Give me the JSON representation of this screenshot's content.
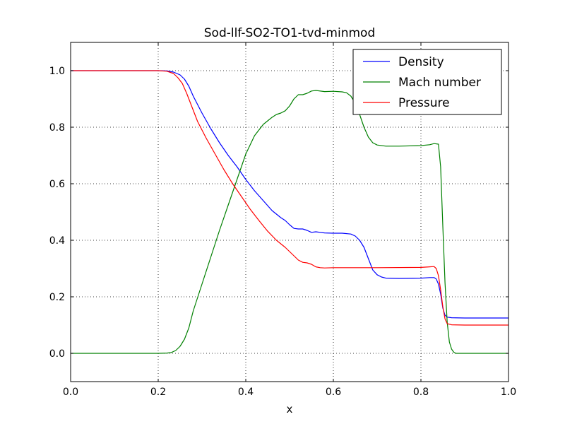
{
  "chart_data": {
    "type": "line",
    "title": "Sod-llf-SO2-TO1-tvd-minmod",
    "xlabel": "x",
    "ylabel": "",
    "xlim": [
      0.0,
      1.0
    ],
    "ylim": [
      -0.1,
      1.1
    ],
    "xticks": [
      0.0,
      0.2,
      0.4,
      0.6,
      0.8,
      1.0
    ],
    "yticks": [
      0.0,
      0.2,
      0.4,
      0.6,
      0.8,
      1.0
    ],
    "xtick_labels": [
      "0.0",
      "0.2",
      "0.4",
      "0.6",
      "0.8",
      "1.0"
    ],
    "ytick_labels": [
      "0.0",
      "0.2",
      "0.4",
      "0.6",
      "0.8",
      "1.0"
    ],
    "grid": true,
    "legend_position": "top-right",
    "series": [
      {
        "name": "Density",
        "color": "#0000ff",
        "points": [
          [
            0.0,
            1.0
          ],
          [
            0.2,
            1.0
          ],
          [
            0.22,
            0.999
          ],
          [
            0.235,
            0.995
          ],
          [
            0.25,
            0.985
          ],
          [
            0.26,
            0.97
          ],
          [
            0.27,
            0.945
          ],
          [
            0.28,
            0.91
          ],
          [
            0.3,
            0.85
          ],
          [
            0.32,
            0.795
          ],
          [
            0.34,
            0.745
          ],
          [
            0.36,
            0.7
          ],
          [
            0.38,
            0.66
          ],
          [
            0.4,
            0.615
          ],
          [
            0.42,
            0.575
          ],
          [
            0.44,
            0.54
          ],
          [
            0.46,
            0.505
          ],
          [
            0.48,
            0.48
          ],
          [
            0.49,
            0.47
          ],
          [
            0.5,
            0.455
          ],
          [
            0.51,
            0.442
          ],
          [
            0.52,
            0.44
          ],
          [
            0.53,
            0.44
          ],
          [
            0.54,
            0.435
          ],
          [
            0.55,
            0.428
          ],
          [
            0.56,
            0.43
          ],
          [
            0.57,
            0.428
          ],
          [
            0.58,
            0.426
          ],
          [
            0.6,
            0.425
          ],
          [
            0.62,
            0.425
          ],
          [
            0.64,
            0.422
          ],
          [
            0.65,
            0.415
          ],
          [
            0.66,
            0.4
          ],
          [
            0.67,
            0.375
          ],
          [
            0.68,
            0.335
          ],
          [
            0.69,
            0.295
          ],
          [
            0.7,
            0.278
          ],
          [
            0.71,
            0.27
          ],
          [
            0.72,
            0.266
          ],
          [
            0.75,
            0.265
          ],
          [
            0.8,
            0.266
          ],
          [
            0.82,
            0.268
          ],
          [
            0.83,
            0.268
          ],
          [
            0.835,
            0.263
          ],
          [
            0.84,
            0.245
          ],
          [
            0.845,
            0.21
          ],
          [
            0.85,
            0.16
          ],
          [
            0.855,
            0.135
          ],
          [
            0.86,
            0.128
          ],
          [
            0.87,
            0.126
          ],
          [
            0.9,
            0.125
          ],
          [
            1.0,
            0.125
          ]
        ]
      },
      {
        "name": "Mach number",
        "color": "#008000",
        "points": [
          [
            0.0,
            0.0
          ],
          [
            0.2,
            0.0
          ],
          [
            0.22,
            0.001
          ],
          [
            0.23,
            0.003
          ],
          [
            0.24,
            0.01
          ],
          [
            0.25,
            0.025
          ],
          [
            0.26,
            0.05
          ],
          [
            0.27,
            0.09
          ],
          [
            0.28,
            0.15
          ],
          [
            0.3,
            0.245
          ],
          [
            0.32,
            0.34
          ],
          [
            0.34,
            0.435
          ],
          [
            0.36,
            0.525
          ],
          [
            0.38,
            0.615
          ],
          [
            0.4,
            0.705
          ],
          [
            0.42,
            0.77
          ],
          [
            0.44,
            0.81
          ],
          [
            0.46,
            0.835
          ],
          [
            0.47,
            0.845
          ],
          [
            0.48,
            0.85
          ],
          [
            0.49,
            0.858
          ],
          [
            0.5,
            0.875
          ],
          [
            0.51,
            0.9
          ],
          [
            0.52,
            0.915
          ],
          [
            0.53,
            0.915
          ],
          [
            0.54,
            0.92
          ],
          [
            0.55,
            0.928
          ],
          [
            0.56,
            0.93
          ],
          [
            0.58,
            0.926
          ],
          [
            0.6,
            0.927
          ],
          [
            0.62,
            0.925
          ],
          [
            0.63,
            0.922
          ],
          [
            0.64,
            0.91
          ],
          [
            0.65,
            0.885
          ],
          [
            0.66,
            0.845
          ],
          [
            0.67,
            0.8
          ],
          [
            0.68,
            0.765
          ],
          [
            0.69,
            0.745
          ],
          [
            0.7,
            0.737
          ],
          [
            0.72,
            0.733
          ],
          [
            0.75,
            0.733
          ],
          [
            0.8,
            0.735
          ],
          [
            0.82,
            0.738
          ],
          [
            0.83,
            0.742
          ],
          [
            0.84,
            0.74
          ],
          [
            0.845,
            0.66
          ],
          [
            0.85,
            0.45
          ],
          [
            0.855,
            0.25
          ],
          [
            0.86,
            0.11
          ],
          [
            0.865,
            0.04
          ],
          [
            0.87,
            0.015
          ],
          [
            0.875,
            0.004
          ],
          [
            0.88,
            0.0
          ],
          [
            1.0,
            0.0
          ]
        ]
      },
      {
        "name": "Pressure",
        "color": "#ff0000",
        "points": [
          [
            0.0,
            1.0
          ],
          [
            0.2,
            1.0
          ],
          [
            0.22,
            0.998
          ],
          [
            0.235,
            0.99
          ],
          [
            0.245,
            0.975
          ],
          [
            0.255,
            0.955
          ],
          [
            0.265,
            0.92
          ],
          [
            0.275,
            0.88
          ],
          [
            0.29,
            0.82
          ],
          [
            0.31,
            0.76
          ],
          [
            0.33,
            0.705
          ],
          [
            0.35,
            0.65
          ],
          [
            0.37,
            0.6
          ],
          [
            0.39,
            0.555
          ],
          [
            0.41,
            0.51
          ],
          [
            0.43,
            0.47
          ],
          [
            0.45,
            0.432
          ],
          [
            0.47,
            0.4
          ],
          [
            0.49,
            0.375
          ],
          [
            0.5,
            0.36
          ],
          [
            0.51,
            0.345
          ],
          [
            0.52,
            0.33
          ],
          [
            0.53,
            0.322
          ],
          [
            0.54,
            0.32
          ],
          [
            0.55,
            0.315
          ],
          [
            0.56,
            0.306
          ],
          [
            0.57,
            0.303
          ],
          [
            0.58,
            0.302
          ],
          [
            0.6,
            0.303
          ],
          [
            0.62,
            0.303
          ],
          [
            0.7,
            0.303
          ],
          [
            0.8,
            0.304
          ],
          [
            0.82,
            0.306
          ],
          [
            0.83,
            0.307
          ],
          [
            0.835,
            0.3
          ],
          [
            0.84,
            0.275
          ],
          [
            0.845,
            0.225
          ],
          [
            0.85,
            0.165
          ],
          [
            0.855,
            0.122
          ],
          [
            0.86,
            0.105
          ],
          [
            0.87,
            0.101
          ],
          [
            0.9,
            0.1
          ],
          [
            1.0,
            0.1
          ]
        ]
      }
    ]
  }
}
